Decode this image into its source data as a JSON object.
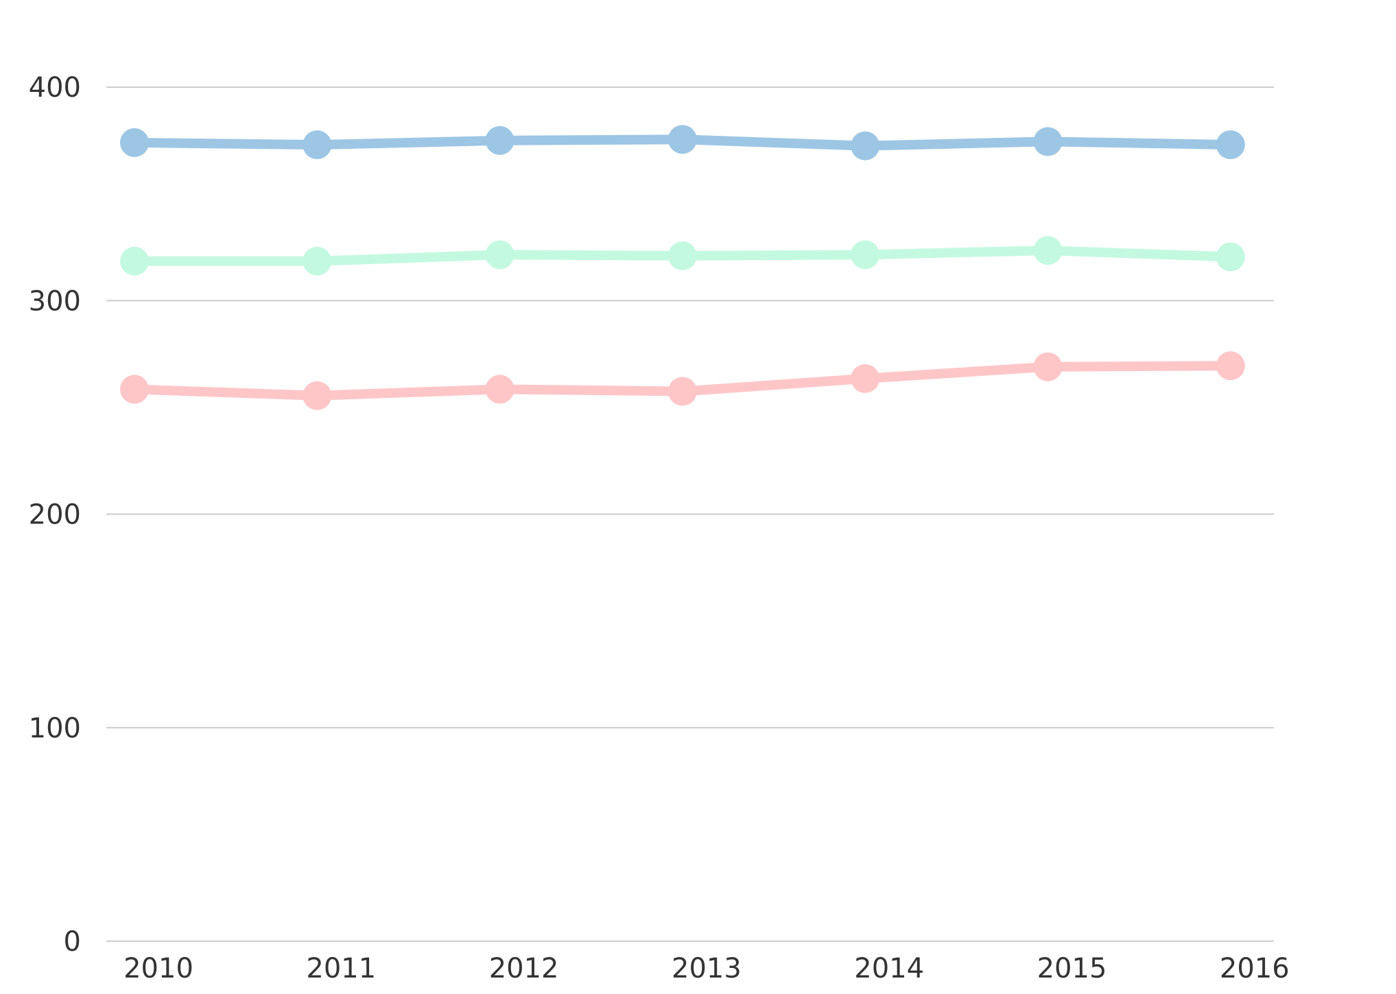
{
  "chart_data": {
    "type": "line",
    "title": "",
    "xlabel": "",
    "ylabel": "",
    "categories": [
      "2010",
      "2011",
      "2012",
      "2013",
      "2014",
      "2015",
      "2016"
    ],
    "ylim": [
      0,
      400
    ],
    "yticks": [
      "0",
      "100",
      "200",
      "300",
      "400"
    ],
    "grid": true,
    "legend": "none",
    "series": [
      {
        "color": "#9dc6e5",
        "values": [
          374,
          373,
          375,
          375.5,
          372.5,
          374.5,
          373
        ]
      },
      {
        "color": "#c4f9e1",
        "values": [
          318.5,
          318.5,
          321.5,
          321,
          321.5,
          323.5,
          320.5
        ]
      },
      {
        "color": "#ffc6c8",
        "values": [
          258.5,
          255.5,
          258.5,
          257.5,
          263.5,
          269,
          269.5
        ]
      }
    ]
  }
}
